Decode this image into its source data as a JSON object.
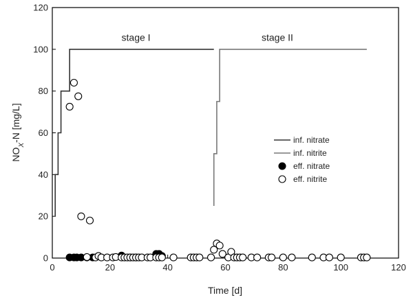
{
  "chart_data": {
    "type": "scatter",
    "xlabel": "Time [d]",
    "ylabel_parts": {
      "base": "NO",
      "sub": "X",
      "rest": "-N [mg/L]"
    },
    "xlim": [
      0,
      120
    ],
    "ylim": [
      0,
      120
    ],
    "xticks": [
      0,
      20,
      40,
      60,
      80,
      100,
      120
    ],
    "yticks": [
      0,
      20,
      40,
      60,
      80,
      100,
      120
    ],
    "grid": false,
    "legend_position": "center-right",
    "annotations": [
      {
        "text": "stage I",
        "x": 29,
        "y": 104
      },
      {
        "text": "stage II",
        "x": 78,
        "y": 104
      }
    ],
    "series": [
      {
        "name": "inf. nitrate",
        "kind": "step-line",
        "color": "#333333",
        "points": [
          [
            1,
            20
          ],
          [
            1,
            40
          ],
          [
            2,
            40
          ],
          [
            2,
            60
          ],
          [
            3,
            60
          ],
          [
            3,
            80
          ],
          [
            6,
            80
          ],
          [
            6,
            100
          ],
          [
            56,
            100
          ]
        ]
      },
      {
        "name": "inf. nitrite",
        "kind": "step-line",
        "color": "#777777",
        "points": [
          [
            56,
            25
          ],
          [
            56,
            50
          ],
          [
            57,
            50
          ],
          [
            57,
            75
          ],
          [
            58,
            75
          ],
          [
            58,
            100
          ],
          [
            109,
            100
          ]
        ]
      },
      {
        "name": "eff. nitrate",
        "kind": "marker",
        "marker": "filled-circle",
        "color": "#000000",
        "points": [
          [
            6,
            0.3
          ],
          [
            7.5,
            0.3
          ],
          [
            8.5,
            0.3
          ],
          [
            10,
            0.3
          ],
          [
            12,
            0.3
          ],
          [
            14,
            0.3
          ],
          [
            24,
            1.2
          ],
          [
            27,
            0.3
          ],
          [
            29,
            0.3
          ],
          [
            36,
            2
          ],
          [
            37,
            2
          ],
          [
            38,
            1
          ]
        ]
      },
      {
        "name": "eff. nitrite",
        "kind": "marker",
        "marker": "open-circle",
        "color": "#000000",
        "points": [
          [
            6,
            72.5
          ],
          [
            7.5,
            84
          ],
          [
            9,
            77.5
          ],
          [
            10,
            20
          ],
          [
            13,
            18
          ],
          [
            12,
            0.5
          ],
          [
            15,
            0.3
          ],
          [
            16,
            1
          ],
          [
            17,
            0.3
          ],
          [
            19,
            0.3
          ],
          [
            21,
            0.3
          ],
          [
            22,
            0.5
          ],
          [
            24,
            0.3
          ],
          [
            25,
            0.3
          ],
          [
            26,
            0.3
          ],
          [
            27,
            0.3
          ],
          [
            28,
            0.3
          ],
          [
            29,
            0.3
          ],
          [
            30,
            0.3
          ],
          [
            31,
            0.3
          ],
          [
            33,
            0.3
          ],
          [
            34,
            0.3
          ],
          [
            36,
            0.3
          ],
          [
            37,
            0.3
          ],
          [
            38,
            0.3
          ],
          [
            42,
            0.3
          ],
          [
            48,
            0.3
          ],
          [
            49,
            0.3
          ],
          [
            50,
            0.3
          ],
          [
            51,
            0.3
          ],
          [
            55,
            0.3
          ],
          [
            56,
            4
          ],
          [
            57,
            7
          ],
          [
            58,
            6
          ],
          [
            59,
            2
          ],
          [
            61,
            0.3
          ],
          [
            62,
            3
          ],
          [
            63,
            0.3
          ],
          [
            64,
            0.3
          ],
          [
            65,
            0.3
          ],
          [
            66,
            0.3
          ],
          [
            69,
            0.3
          ],
          [
            71,
            0.3
          ],
          [
            75,
            0.3
          ],
          [
            76,
            0.3
          ],
          [
            80,
            0.3
          ],
          [
            83,
            0.3
          ],
          [
            90,
            0.3
          ],
          [
            94,
            0.3
          ],
          [
            96,
            0.3
          ],
          [
            100,
            0.3
          ],
          [
            107,
            0.3
          ],
          [
            108,
            0.3
          ],
          [
            109,
            0.3
          ]
        ]
      }
    ]
  }
}
